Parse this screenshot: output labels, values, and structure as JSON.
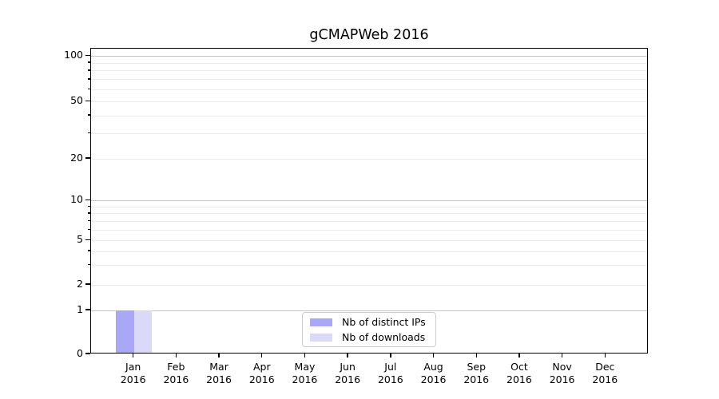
{
  "chart_data": {
    "type": "bar",
    "title": "gCMAPWeb 2016",
    "categories": [
      "Jan",
      "Feb",
      "Mar",
      "Apr",
      "May",
      "Jun",
      "Jul",
      "Aug",
      "Sep",
      "Oct",
      "Nov",
      "Dec"
    ],
    "x_sublabel": "2016",
    "series": [
      {
        "name": "Nb of distinct IPs",
        "color": "#a8a8f7",
        "values": [
          1,
          0,
          0,
          0,
          0,
          0,
          0,
          0,
          0,
          0,
          0,
          0
        ]
      },
      {
        "name": "Nb of downloads",
        "color": "#dadaf8",
        "values": [
          1,
          0,
          0,
          0,
          0,
          0,
          0,
          0,
          0,
          0,
          0,
          0
        ]
      }
    ],
    "yticks": [
      0,
      1,
      2,
      5,
      10,
      20,
      50,
      100
    ],
    "ylim": [
      0,
      100
    ],
    "yscale": "log-like above 1, linear 0-1",
    "xlabel": "",
    "ylabel": "",
    "grid": "horizontal",
    "legend_position": "bottom-center"
  }
}
